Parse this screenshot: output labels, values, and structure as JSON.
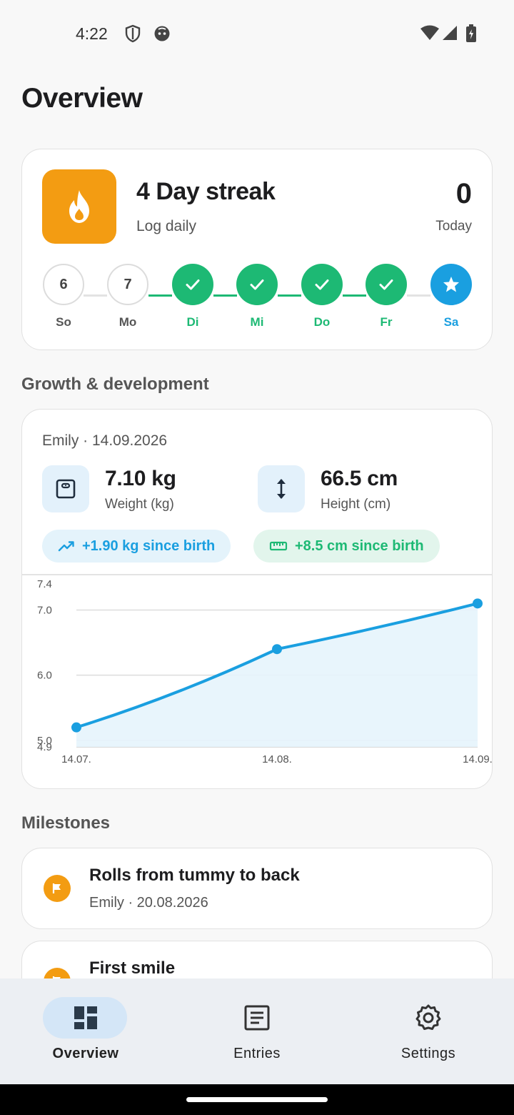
{
  "status_bar": {
    "time": "4:22"
  },
  "page_title": "Overview",
  "streak": {
    "title": "4 Day streak",
    "subtitle": "Log daily",
    "today_count": "0",
    "today_label": "Today",
    "days": [
      {
        "label": "So",
        "number": "6",
        "state": "empty"
      },
      {
        "label": "Mo",
        "number": "7",
        "state": "empty"
      },
      {
        "label": "Di",
        "number": "",
        "state": "done"
      },
      {
        "label": "Mi",
        "number": "",
        "state": "done"
      },
      {
        "label": "Do",
        "number": "",
        "state": "done"
      },
      {
        "label": "Fr",
        "number": "",
        "state": "done"
      },
      {
        "label": "Sa",
        "number": "",
        "state": "today"
      }
    ]
  },
  "growth": {
    "section_title": "Growth & development",
    "meta": "Emily · 14.09.2026",
    "weight_value": "7.10 kg",
    "weight_label": "Weight (kg)",
    "height_value": "66.5 cm",
    "height_label": "Height (cm)",
    "weight_change": "+1.90 kg since birth",
    "height_change": "+8.5 cm since birth"
  },
  "chart_data": {
    "type": "area",
    "x": [
      "14.07.",
      "14.08.",
      "14.09."
    ],
    "values": [
      5.2,
      6.4,
      7.1
    ],
    "y_ticks": [
      "4.9",
      "5.0",
      "6.0",
      "7.0",
      "7.4"
    ],
    "ylim": [
      4.9,
      7.4
    ],
    "grid": true
  },
  "milestones": {
    "section_title": "Milestones",
    "items": [
      {
        "title": "Rolls from tummy to back",
        "subtitle": "Emily · 20.08.2026"
      },
      {
        "title": "First smile",
        "subtitle": ""
      }
    ]
  },
  "nav": {
    "overview": "Overview",
    "entries": "Entries",
    "settings": "Settings"
  },
  "colors": {
    "accent_blue": "#1a9fe0",
    "accent_green": "#1db974",
    "accent_orange": "#f39c12"
  }
}
